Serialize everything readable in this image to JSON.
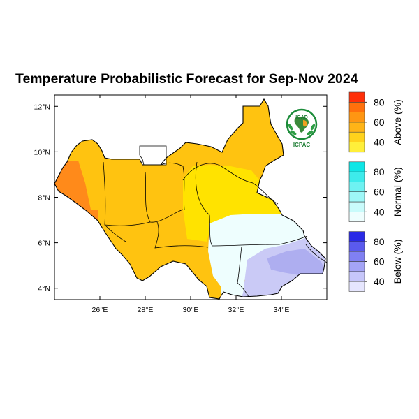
{
  "title": "Temperature Probabilistic Forecast for Sep-Nov 2024",
  "map": {
    "lon_range": [
      24.0,
      36.0
    ],
    "lat_range": [
      3.5,
      12.5
    ],
    "lon_ticks": [
      "26°E",
      "28°E",
      "30°E",
      "32°E",
      "34°E"
    ],
    "lat_ticks": [
      "4°N",
      "6°N",
      "8°N",
      "10°N",
      "12°N"
    ]
  },
  "logo": {
    "top_text": "IGAD",
    "bottom_text": "ICPAC"
  },
  "legend": {
    "groups": [
      {
        "name": "Above (%)",
        "colors": [
          "#ffef3a",
          "#ffd21c",
          "#ffb417",
          "#ff9612",
          "#ff700c",
          "#ff2f08"
        ],
        "labels": [
          "40",
          "60",
          "80"
        ]
      },
      {
        "name": "Normal (%)",
        "colors": [
          "#eefefe",
          "#c9fbfb",
          "#9ef7f7",
          "#6ef2f2",
          "#3debeb",
          "#0ee6e6"
        ],
        "labels": [
          "40",
          "60",
          "80"
        ]
      },
      {
        "name": "Below (%)",
        "colors": [
          "#e6e6fe",
          "#c6c6fa",
          "#a4a4f6",
          "#8080f2",
          "#5a5aee",
          "#2a2ae6"
        ],
        "labels": [
          "40",
          "60",
          "80"
        ]
      }
    ]
  },
  "colors": {
    "above_main": "#ffc310",
    "above_low": "#ffe300",
    "above_high": "#ff8a1a",
    "normal_low": "#eefefe",
    "below_low": "#cacaf6",
    "below_mid": "#aeaef0"
  }
}
